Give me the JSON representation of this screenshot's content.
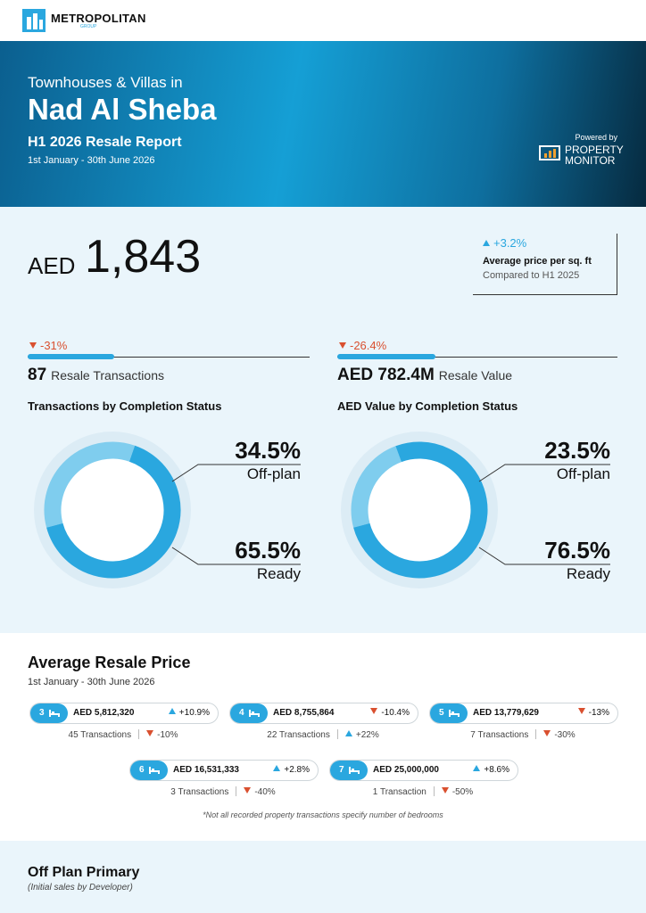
{
  "header": {
    "logo": "METROPOLITAN",
    "logo_sub": "GROUP"
  },
  "banner": {
    "kicker": "Townhouses & Villas in",
    "title": "Nad Al Sheba",
    "report": "H1 2026 Resale Report",
    "dates": "1st January - 30th June 2026",
    "powered_by": "Powered by",
    "partner": [
      "PROPERTY",
      "MONITOR"
    ]
  },
  "price": {
    "currency": "AED",
    "value": "1,843",
    "change": "+3.2%",
    "label": "Average price per sq. ft",
    "comparison": "Compared to H1 2025"
  },
  "transactions": {
    "change": "-31%",
    "value": "87",
    "label": "Resale Transactions",
    "chart": {
      "type": "donut",
      "title": "Transactions by Completion Status",
      "labels": [
        "Off-plan",
        "Ready"
      ],
      "values": [
        34.5,
        65.5
      ],
      "value_labels": [
        "34.5%",
        "65.5%"
      ],
      "colors": [
        "#7fcdee",
        "#2aa7df"
      ]
    }
  },
  "value": {
    "change": "-26.4%",
    "value": "AED 782.4M",
    "label": "Resale Value",
    "chart": {
      "type": "donut",
      "title": "AED Value by Completion Status",
      "labels": [
        "Off-plan",
        "Ready"
      ],
      "values": [
        23.5,
        76.5
      ],
      "value_labels": [
        "23.5%",
        "76.5%"
      ],
      "colors": [
        "#7fcdee",
        "#2aa7df"
      ]
    }
  },
  "resale": {
    "title": "Average Resale Price",
    "dates": "1st January - 30th June 2026",
    "items": [
      {
        "bedrooms": "3",
        "price": "AED 5,812,320",
        "change": "+10.9%",
        "transactions": "45 Transactions",
        "transactions_change": "-10%"
      },
      {
        "bedrooms": "4",
        "price": "AED 8,755,864",
        "change": "-10.4%",
        "transactions": "22 Transactions",
        "transactions_change": "+22%"
      },
      {
        "bedrooms": "5",
        "price": "AED 13,779,629",
        "change": "-13%",
        "transactions": "7 Transactions",
        "transactions_change": "-30%"
      },
      {
        "bedrooms": "6",
        "price": "AED 16,531,333",
        "change": "+2.8%",
        "transactions": "3 Transactions",
        "transactions_change": "-40%"
      },
      {
        "bedrooms": "7",
        "price": "AED 25,000,000",
        "change": "+8.6%",
        "transactions": "1 Transaction",
        "transactions_change": "-50%"
      }
    ],
    "note": "*Not all recorded property transactions specify number of bedrooms"
  },
  "off_plan": {
    "title": "Off Plan Primary",
    "subtitle": "(Initial sales by Developer)"
  }
}
